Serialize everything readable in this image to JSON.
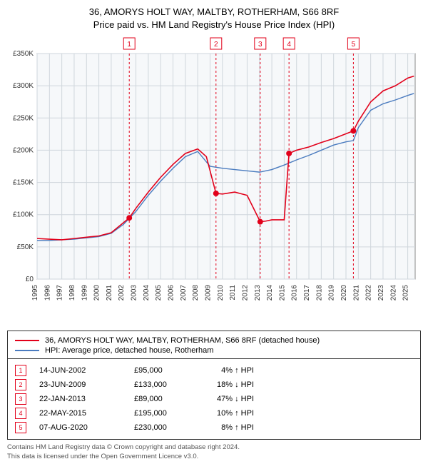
{
  "title_line1": "36, AMORYS HOLT WAY, MALTBY, ROTHERHAM, S66 8RF",
  "title_line2": "Price paid vs. HM Land Registry's House Price Index (HPI)",
  "chart": {
    "plot_bg": "#f6f8fa",
    "border": "#888888",
    "grid": "#cfd6dc",
    "x_years": [
      1995,
      1996,
      1997,
      1998,
      1999,
      2000,
      2001,
      2002,
      2003,
      2004,
      2005,
      2006,
      2007,
      2008,
      2009,
      2010,
      2011,
      2012,
      2013,
      2014,
      2015,
      2016,
      2017,
      2018,
      2019,
      2020,
      2021,
      2022,
      2023,
      2024,
      2025
    ],
    "x_min": 1995,
    "x_max": 2025.6,
    "y_min": 0,
    "y_max": 350,
    "y_ticks": [
      0,
      50,
      100,
      150,
      200,
      250,
      300,
      350
    ],
    "y_tick_labels": [
      "£0",
      "£50K",
      "£100K",
      "£150K",
      "£200K",
      "£250K",
      "£300K",
      "£350K"
    ],
    "series": {
      "price": {
        "color": "#e2001a",
        "width": 1.6,
        "pts": [
          [
            1995,
            63
          ],
          [
            1996,
            62
          ],
          [
            1997,
            61
          ],
          [
            1998,
            63
          ],
          [
            1999,
            65
          ],
          [
            2000,
            67
          ],
          [
            2001,
            72
          ],
          [
            2002.46,
            95
          ],
          [
            2003,
            110
          ],
          [
            2004,
            135
          ],
          [
            2005,
            158
          ],
          [
            2006,
            178
          ],
          [
            2007,
            195
          ],
          [
            2008,
            202
          ],
          [
            2008.7,
            190
          ],
          [
            2009.48,
            133
          ],
          [
            2010,
            132
          ],
          [
            2011,
            135
          ],
          [
            2012,
            130
          ],
          [
            2013.06,
            89
          ],
          [
            2013.5,
            90
          ],
          [
            2014,
            92
          ],
          [
            2015,
            92
          ],
          [
            2015.39,
            195
          ],
          [
            2016,
            200
          ],
          [
            2017,
            205
          ],
          [
            2018,
            212
          ],
          [
            2019,
            218
          ],
          [
            2020.6,
            230
          ],
          [
            2021,
            245
          ],
          [
            2022,
            275
          ],
          [
            2023,
            292
          ],
          [
            2024,
            300
          ],
          [
            2025,
            312
          ],
          [
            2025.5,
            315
          ]
        ]
      },
      "hpi": {
        "color": "#4a7bbf",
        "width": 1.4,
        "pts": [
          [
            1995,
            60
          ],
          [
            1996,
            60
          ],
          [
            1997,
            61
          ],
          [
            1998,
            62
          ],
          [
            1999,
            64
          ],
          [
            2000,
            66
          ],
          [
            2001,
            71
          ],
          [
            2002,
            85
          ],
          [
            2003,
            105
          ],
          [
            2004,
            130
          ],
          [
            2005,
            152
          ],
          [
            2006,
            172
          ],
          [
            2007,
            190
          ],
          [
            2008,
            198
          ],
          [
            2009,
            175
          ],
          [
            2010,
            172
          ],
          [
            2011,
            170
          ],
          [
            2012,
            168
          ],
          [
            2013,
            166
          ],
          [
            2014,
            170
          ],
          [
            2015,
            177
          ],
          [
            2016,
            185
          ],
          [
            2017,
            192
          ],
          [
            2018,
            200
          ],
          [
            2019,
            208
          ],
          [
            2020,
            213
          ],
          [
            2020.6,
            215
          ],
          [
            2021,
            235
          ],
          [
            2022,
            262
          ],
          [
            2023,
            272
          ],
          [
            2024,
            278
          ],
          [
            2025,
            285
          ],
          [
            2025.5,
            288
          ]
        ]
      }
    },
    "sale_markers": [
      {
        "n": 1,
        "x": 2002.46,
        "y": 95,
        "color": "#e2001a"
      },
      {
        "n": 2,
        "x": 2009.48,
        "y": 133,
        "color": "#e2001a"
      },
      {
        "n": 3,
        "x": 2013.06,
        "y": 89,
        "color": "#e2001a"
      },
      {
        "n": 4,
        "x": 2015.39,
        "y": 195,
        "color": "#e2001a"
      },
      {
        "n": 5,
        "x": 2020.6,
        "y": 230,
        "color": "#e2001a"
      }
    ],
    "vline_color": "#e2001a",
    "vline_dash": "3,3"
  },
  "legend": {
    "series1": {
      "color": "#e2001a",
      "label": "36, AMORYS HOLT WAY, MALTBY, ROTHERHAM, S66 8RF (detached house)"
    },
    "series2": {
      "color": "#4a7bbf",
      "label": "HPI: Average price, detached house, Rotherham"
    }
  },
  "sales": [
    {
      "n": 1,
      "date": "14-JUN-2002",
      "price": "£95,000",
      "diff": "4%",
      "arrow": "↑",
      "tag": "HPI",
      "color": "#e2001a"
    },
    {
      "n": 2,
      "date": "23-JUN-2009",
      "price": "£133,000",
      "diff": "18%",
      "arrow": "↓",
      "tag": "HPI",
      "color": "#e2001a"
    },
    {
      "n": 3,
      "date": "22-JAN-2013",
      "price": "£89,000",
      "diff": "47%",
      "arrow": "↓",
      "tag": "HPI",
      "color": "#e2001a"
    },
    {
      "n": 4,
      "date": "22-MAY-2015",
      "price": "£195,000",
      "diff": "10%",
      "arrow": "↑",
      "tag": "HPI",
      "color": "#e2001a"
    },
    {
      "n": 5,
      "date": "07-AUG-2020",
      "price": "£230,000",
      "diff": "8%",
      "arrow": "↑",
      "tag": "HPI",
      "color": "#e2001a"
    }
  ],
  "footnote_line1": "Contains HM Land Registry data © Crown copyright and database right 2024.",
  "footnote_line2": "This data is licensed under the Open Government Licence v3.0."
}
